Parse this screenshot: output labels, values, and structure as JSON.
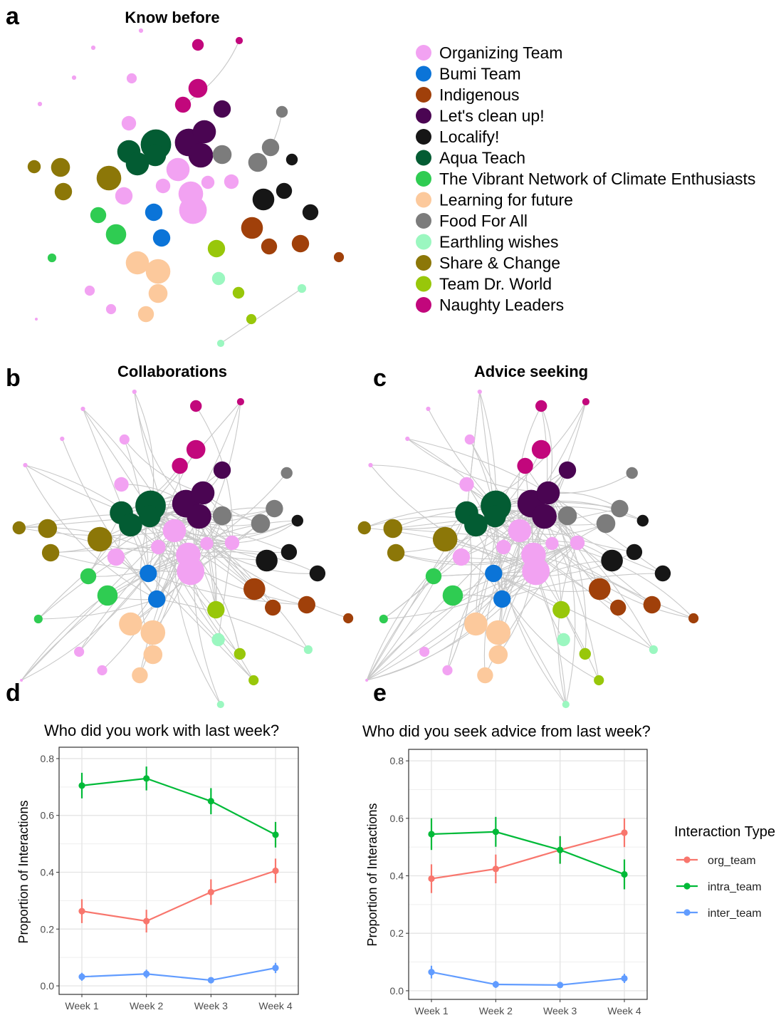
{
  "panels": {
    "a": {
      "letter": "a",
      "title": "Know before"
    },
    "b": {
      "letter": "b",
      "title": "Collaborations"
    },
    "c": {
      "letter": "c",
      "title": "Advice seeking"
    },
    "d": {
      "letter": "d"
    },
    "e": {
      "letter": "e"
    }
  },
  "team_legend": [
    {
      "label": "Organizing Team",
      "color": "#f2a2f2"
    },
    {
      "label": "Bumi Team",
      "color": "#0b74d8"
    },
    {
      "label": "Indigenous",
      "color": "#a0400a"
    },
    {
      "label": "Let's clean up!",
      "color": "#4a0552"
    },
    {
      "label": "Localify!",
      "color": "#161616"
    },
    {
      "label": "Aqua Teach",
      "color": "#035c33"
    },
    {
      "label": "The Vibrant Network of Climate Enthusiasts",
      "color": "#2fcc52"
    },
    {
      "label": "Learning for future",
      "color": "#fcc99c"
    },
    {
      "label": "Food For All",
      "color": "#7c7c7c"
    },
    {
      "label": "Earthling wishes",
      "color": "#9bf7c0"
    },
    {
      "label": "Share & Change",
      "color": "#8c7708"
    },
    {
      "label": "Team Dr. World",
      "color": "#98c70a"
    },
    {
      "label": "Naughty Leaders",
      "color": "#c2077c"
    }
  ],
  "chart_data": [
    {
      "type": "line",
      "title": "Who did you work with last week?",
      "xlabel": "",
      "ylabel": "Proportion of Interactions",
      "categories": [
        "Week 1",
        "Week 2",
        "Week 3",
        "Week 4"
      ],
      "ylim": [
        -0.03,
        0.84
      ],
      "yticks": [
        "0.0",
        "0.2",
        "0.4",
        "0.6",
        "0.8"
      ],
      "grid": true,
      "series": [
        {
          "name": "org_team",
          "color": "#f8766d",
          "values": [
            0.263,
            0.228,
            0.33,
            0.405
          ],
          "err": [
            0.042,
            0.04,
            0.045,
            0.043
          ]
        },
        {
          "name": "intra_team",
          "color": "#00ba38",
          "values": [
            0.705,
            0.73,
            0.65,
            0.532
          ],
          "err": [
            0.045,
            0.042,
            0.046,
            0.045
          ]
        },
        {
          "name": "inter_team",
          "color": "#619cff",
          "values": [
            0.032,
            0.042,
            0.02,
            0.063
          ],
          "err": [
            0.014,
            0.015,
            0.009,
            0.018
          ]
        }
      ]
    },
    {
      "type": "line",
      "title": "Who did you seek advice from last week?",
      "xlabel": "",
      "ylabel": "Proportion of Interactions",
      "categories": [
        "Week 1",
        "Week 2",
        "Week 3",
        "Week 4"
      ],
      "ylim": [
        -0.03,
        0.84
      ],
      "yticks": [
        "0.0",
        "0.2",
        "0.4",
        "0.6",
        "0.8"
      ],
      "grid": true,
      "legend_title": "Interaction Type",
      "legend_position": "right",
      "series": [
        {
          "name": "org_team",
          "color": "#f8766d",
          "values": [
            0.39,
            0.424,
            0.49,
            0.55
          ],
          "err": [
            0.05,
            0.05,
            0.048,
            0.05
          ]
        },
        {
          "name": "intra_team",
          "color": "#00ba38",
          "values": [
            0.545,
            0.553,
            0.49,
            0.405
          ],
          "err": [
            0.055,
            0.052,
            0.048,
            0.052
          ]
        },
        {
          "name": "inter_team",
          "color": "#619cff",
          "values": [
            0.065,
            0.022,
            0.02,
            0.043
          ],
          "err": [
            0.022,
            0.012,
            0.01,
            0.016
          ]
        }
      ]
    }
  ]
}
